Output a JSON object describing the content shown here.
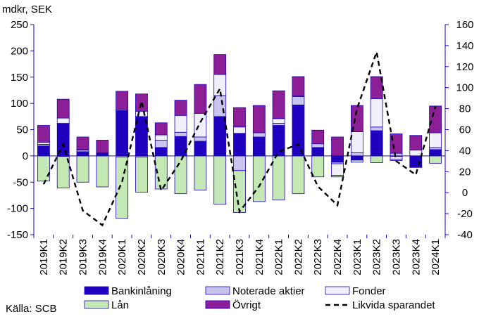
{
  "unit_label": "mdkr, SEK",
  "source": "Källa: SCB",
  "colors": {
    "bankinlaning": "#1E00BE",
    "noterade": "#C8C4EE",
    "fonder": "#F0F0FA",
    "lan": "#C4E8B4",
    "ovrigt": "#8C1E96",
    "bar_edge": "#1E00BE",
    "line": "#000000",
    "axis": "#1E00BE"
  },
  "chart_data": {
    "type": "bar",
    "stacked": true,
    "categories": [
      "2019K1",
      "2019K2",
      "2019K3",
      "2019K4",
      "2020K1",
      "2020K2",
      "2020K3",
      "2020K4",
      "2021K1",
      "2021K2",
      "2021K3",
      "2021K4",
      "2022K1",
      "2022K2",
      "2022K3",
      "2022K4",
      "2023K1",
      "2023K2",
      "2023K3",
      "2023K4",
      "2024K1"
    ],
    "ylim": [
      -150,
      250
    ],
    "yticks": [
      -150,
      -100,
      -50,
      0,
      50,
      100,
      150,
      200,
      250
    ],
    "y2lim": [
      -40,
      160
    ],
    "y2ticks": [
      -40,
      -20,
      0,
      20,
      40,
      60,
      80,
      100,
      120,
      140,
      160
    ],
    "grid": false,
    "legend_position": "bottom",
    "series": [
      {
        "name": "Bankinlåning",
        "key": "bankinlaning",
        "values": [
          19,
          62,
          8,
          5,
          87,
          75,
          16,
          37,
          28,
          75,
          43,
          36,
          58,
          97,
          16,
          -12,
          -8,
          48,
          -1,
          -20,
          12
        ]
      },
      {
        "name": "Noterade aktier",
        "key": "noterade",
        "values": [
          3,
          -1,
          3,
          0,
          -2,
          -2,
          14,
          8,
          8,
          40,
          -28,
          8,
          4,
          16,
          7,
          -3,
          6,
          7,
          5,
          -1,
          4
        ]
      },
      {
        "name": "Fonder",
        "key": "fonder",
        "values": [
          4,
          10,
          1,
          1,
          2,
          10,
          10,
          32,
          45,
          40,
          12,
          0,
          9,
          1,
          0,
          -22,
          40,
          54,
          -5,
          11,
          28
        ]
      },
      {
        "name": "Lån",
        "key": "lan",
        "values": [
          -48,
          -60,
          -50,
          -59,
          -117,
          -67,
          -63,
          -72,
          -65,
          -92,
          -80,
          -87,
          -84,
          -72,
          -40,
          -3,
          -4,
          -13,
          -3,
          -1,
          -14
        ]
      },
      {
        "name": "Övrigt",
        "key": "ovrigt",
        "values": [
          32,
          36,
          24,
          24,
          34,
          33,
          23,
          29,
          55,
          38,
          37,
          52,
          53,
          37,
          26,
          36,
          50,
          42,
          37,
          28,
          51
        ]
      }
    ],
    "line": {
      "name": "Likvida sparandet",
      "axis": "right",
      "values": [
        8,
        46,
        -17,
        -31,
        10,
        87,
        2,
        30,
        67,
        99,
        -18,
        6,
        39,
        46,
        6,
        -12,
        80,
        134,
        30,
        17,
        82
      ]
    }
  }
}
